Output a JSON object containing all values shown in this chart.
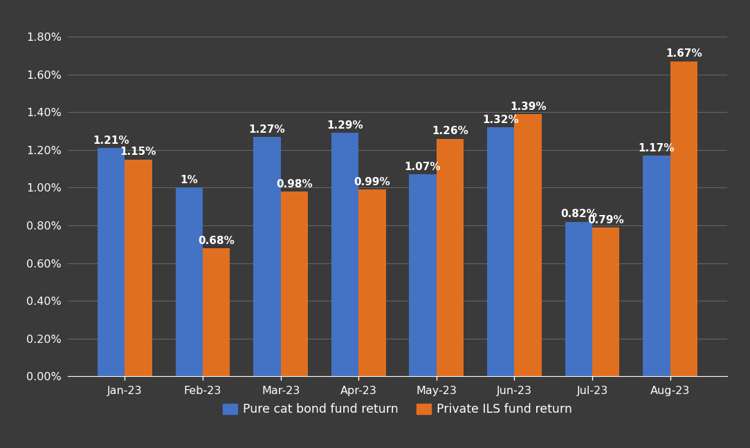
{
  "categories": [
    "Jan-23",
    "Feb-23",
    "Mar-23",
    "Apr-23",
    "May-23",
    "Jun-23",
    "Jul-23",
    "Aug-23"
  ],
  "cat_bond_values": [
    1.21,
    1.0,
    1.27,
    1.29,
    1.07,
    1.32,
    0.82,
    1.17
  ],
  "private_ils_values": [
    1.15,
    0.68,
    0.98,
    0.99,
    1.26,
    1.39,
    0.79,
    1.67
  ],
  "cat_bond_labels": [
    "1.21%",
    "1%",
    "1.27%",
    "1.29%",
    "1.07%",
    "1.32%",
    "0.82%",
    "1.17%"
  ],
  "private_ils_labels": [
    "1.15%",
    "0.68%",
    "0.98%",
    "0.99%",
    "1.26%",
    "1.39%",
    "0.79%",
    "1.67%"
  ],
  "cat_bond_color": "#4472C4",
  "private_ils_color": "#E07020",
  "background_color": "#3A3A3A",
  "plot_bg_color": "#3A3A3A",
  "text_color": "#FFFFFF",
  "grid_color": "#666666",
  "ylim_max": 1.9,
  "yticks": [
    0.0,
    0.2,
    0.4,
    0.6,
    0.8,
    1.0,
    1.2,
    1.4,
    1.6,
    1.8
  ],
  "ytick_labels": [
    "0.00%",
    "0.20%",
    "0.40%",
    "0.60%",
    "0.80%",
    "1.00%",
    "1.20%",
    "1.40%",
    "1.60%",
    "1.80%"
  ],
  "legend_cat_bond": "Pure cat bond fund return",
  "legend_private_ils": "Private ILS fund return",
  "bar_width": 0.35,
  "label_fontsize": 11,
  "tick_fontsize": 11.5,
  "legend_fontsize": 12.5
}
